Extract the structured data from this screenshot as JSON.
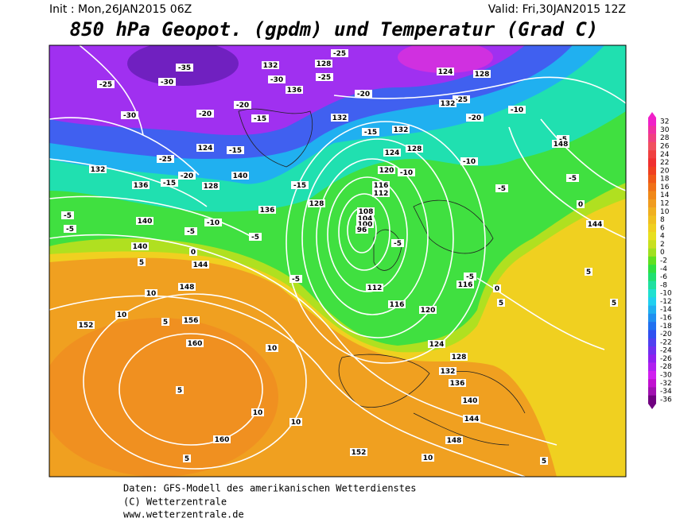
{
  "header": {
    "init": "Init : Mon,26JAN2015 06Z",
    "valid": "Valid: Fri,30JAN2015 12Z",
    "title": "850 hPa Geopot. (gpdm) und Temperatur (Grad C)"
  },
  "map": {
    "labels": [
      -25,
      -30,
      -35,
      -30,
      132,
      128,
      -25,
      -30,
      -25,
      136,
      -20,
      132,
      -20,
      -20,
      -15,
      124,
      -15,
      -25,
      -20,
      -15,
      136,
      128,
      132,
      140,
      -15,
      136,
      128,
      -10,
      140,
      -5,
      -5,
      -5,
      -5,
      140,
      0,
      5,
      144,
      148,
      10,
      152,
      10,
      5,
      156,
      160,
      10,
      5,
      10,
      10,
      160,
      5,
      152,
      10,
      148,
      144,
      140,
      136,
      132,
      128,
      124,
      120,
      116,
      112,
      -5,
      132,
      128,
      124,
      120,
      116,
      112,
      108,
      104,
      100,
      96,
      -5,
      116,
      -5,
      0,
      5,
      -5,
      -10,
      -10,
      -20,
      -25,
      132,
      124,
      128,
      -5,
      148,
      -5,
      0,
      144,
      5,
      5,
      5,
      -10,
      -15
    ]
  },
  "colorbar": {
    "levels": [
      32,
      30,
      28,
      26,
      24,
      22,
      20,
      18,
      16,
      14,
      12,
      10,
      8,
      6,
      4,
      2,
      0,
      -2,
      -4,
      -6,
      -8,
      -10,
      -12,
      -14,
      -16,
      -18,
      -20,
      -22,
      -24,
      -26,
      -28,
      -30,
      -32,
      -34,
      -36
    ],
    "colors": [
      "#f020c8",
      "#f030a0",
      "#f04080",
      "#f05060",
      "#f04040",
      "#f03030",
      "#f04020",
      "#f05818",
      "#f07018",
      "#f08818",
      "#f09c20",
      "#f0b020",
      "#f0c020",
      "#f0d020",
      "#e8e020",
      "#c8e020",
      "#a0e020",
      "#60e020",
      "#30e040",
      "#20e070",
      "#20e0a0",
      "#20e0d0",
      "#20d0f0",
      "#20b0f0",
      "#2090f0",
      "#2070f0",
      "#3050f0",
      "#5040f0",
      "#7030f0",
      "#9020f0",
      "#b020f0",
      "#d020f0",
      "#c010d0",
      "#a010b0",
      "#700080"
    ]
  },
  "footer": {
    "lines": [
      "Daten: GFS-Modell des amerikanischen Wetterdienstes",
      "(C) Wetterzentrale",
      "www.wetterzentrale.de"
    ]
  }
}
